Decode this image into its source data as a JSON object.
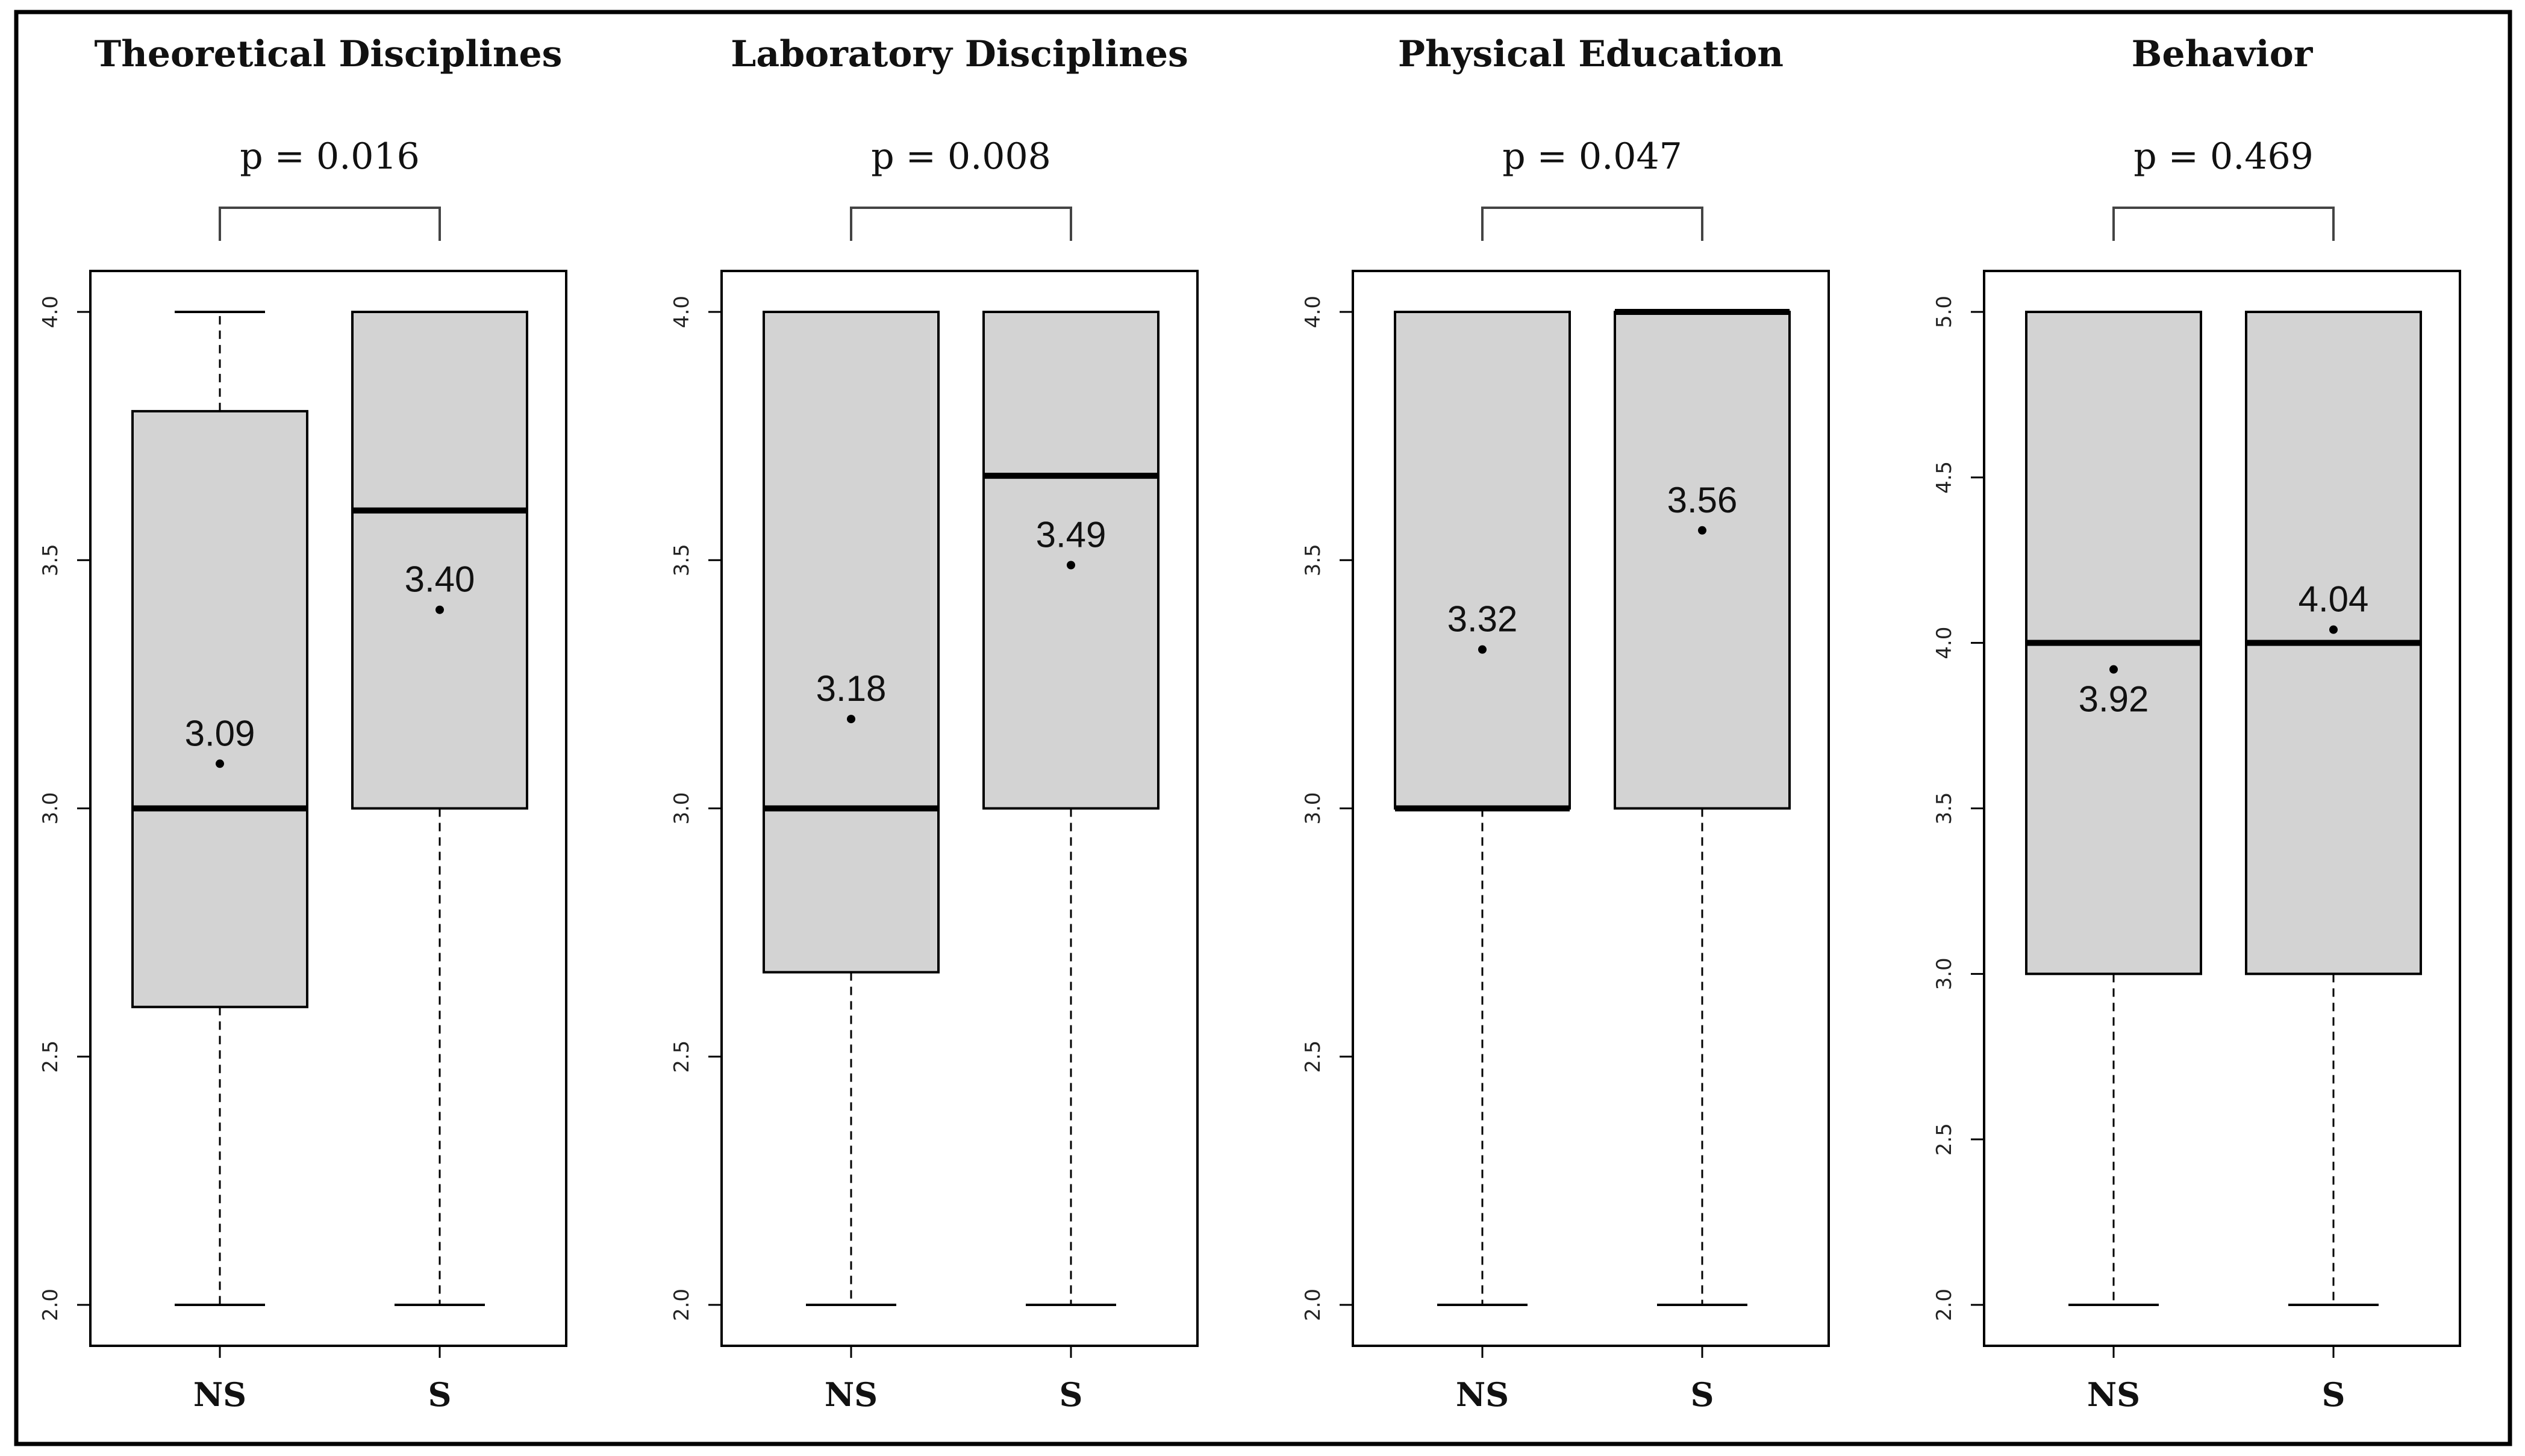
{
  "colors": {
    "box_fill": "#d3d3d3",
    "line": "#000000",
    "background": "#ffffff"
  },
  "chart_data": [
    {
      "type": "boxplot",
      "title": "Theoretical Disciplines",
      "p_value_text": "p = 0.016",
      "categories": [
        "NS",
        "S"
      ],
      "ylim": [
        2.0,
        4.0
      ],
      "yticks": [
        "2.0",
        "2.5",
        "3.0",
        "3.5",
        "4.0"
      ],
      "boxes": [
        {
          "min": 2.0,
          "q1": 2.6,
          "median": 3.0,
          "q3": 3.8,
          "max": 4.0,
          "mean": 3.09,
          "mean_label": "3.09"
        },
        {
          "min": 2.0,
          "q1": 3.0,
          "median": 3.6,
          "q3": 4.0,
          "max": 4.0,
          "mean": 3.4,
          "mean_label": "3.40"
        }
      ]
    },
    {
      "type": "boxplot",
      "title": "Laboratory Disciplines",
      "p_value_text": "p = 0.008",
      "categories": [
        "NS",
        "S"
      ],
      "ylim": [
        2.0,
        4.0
      ],
      "yticks": [
        "2.0",
        "2.5",
        "3.0",
        "3.5",
        "4.0"
      ],
      "boxes": [
        {
          "min": 2.0,
          "q1": 2.67,
          "median": 3.0,
          "q3": 4.0,
          "max": 4.0,
          "mean": 3.18,
          "mean_label": "3.18"
        },
        {
          "min": 2.0,
          "q1": 3.0,
          "median": 3.67,
          "q3": 4.0,
          "max": 4.0,
          "mean": 3.49,
          "mean_label": "3.49"
        }
      ]
    },
    {
      "type": "boxplot",
      "title": "Physical Education",
      "p_value_text": "p = 0.047",
      "categories": [
        "NS",
        "S"
      ],
      "ylim": [
        2.0,
        4.0
      ],
      "yticks": [
        "2.0",
        "2.5",
        "3.0",
        "3.5",
        "4.0"
      ],
      "boxes": [
        {
          "min": 2.0,
          "q1": 3.0,
          "median": 3.0,
          "q3": 4.0,
          "max": 4.0,
          "mean": 3.32,
          "mean_label": "3.32"
        },
        {
          "min": 2.0,
          "q1": 3.0,
          "median": 4.0,
          "q3": 4.0,
          "max": 4.0,
          "mean": 3.56,
          "mean_label": "3.56"
        }
      ]
    },
    {
      "type": "boxplot",
      "title": "Behavior",
      "p_value_text": "p = 0.469",
      "categories": [
        "NS",
        "S"
      ],
      "ylim": [
        2.0,
        5.0
      ],
      "yticks": [
        "2.0",
        "2.5",
        "3.0",
        "3.5",
        "4.0",
        "4.5",
        "5.0"
      ],
      "boxes": [
        {
          "min": 2.0,
          "q1": 3.0,
          "median": 4.0,
          "q3": 5.0,
          "max": 5.0,
          "mean": 3.92,
          "mean_label": "3.92"
        },
        {
          "min": 2.0,
          "q1": 3.0,
          "median": 4.0,
          "q3": 5.0,
          "max": 5.0,
          "mean": 4.04,
          "mean_label": "4.04"
        }
      ]
    }
  ]
}
